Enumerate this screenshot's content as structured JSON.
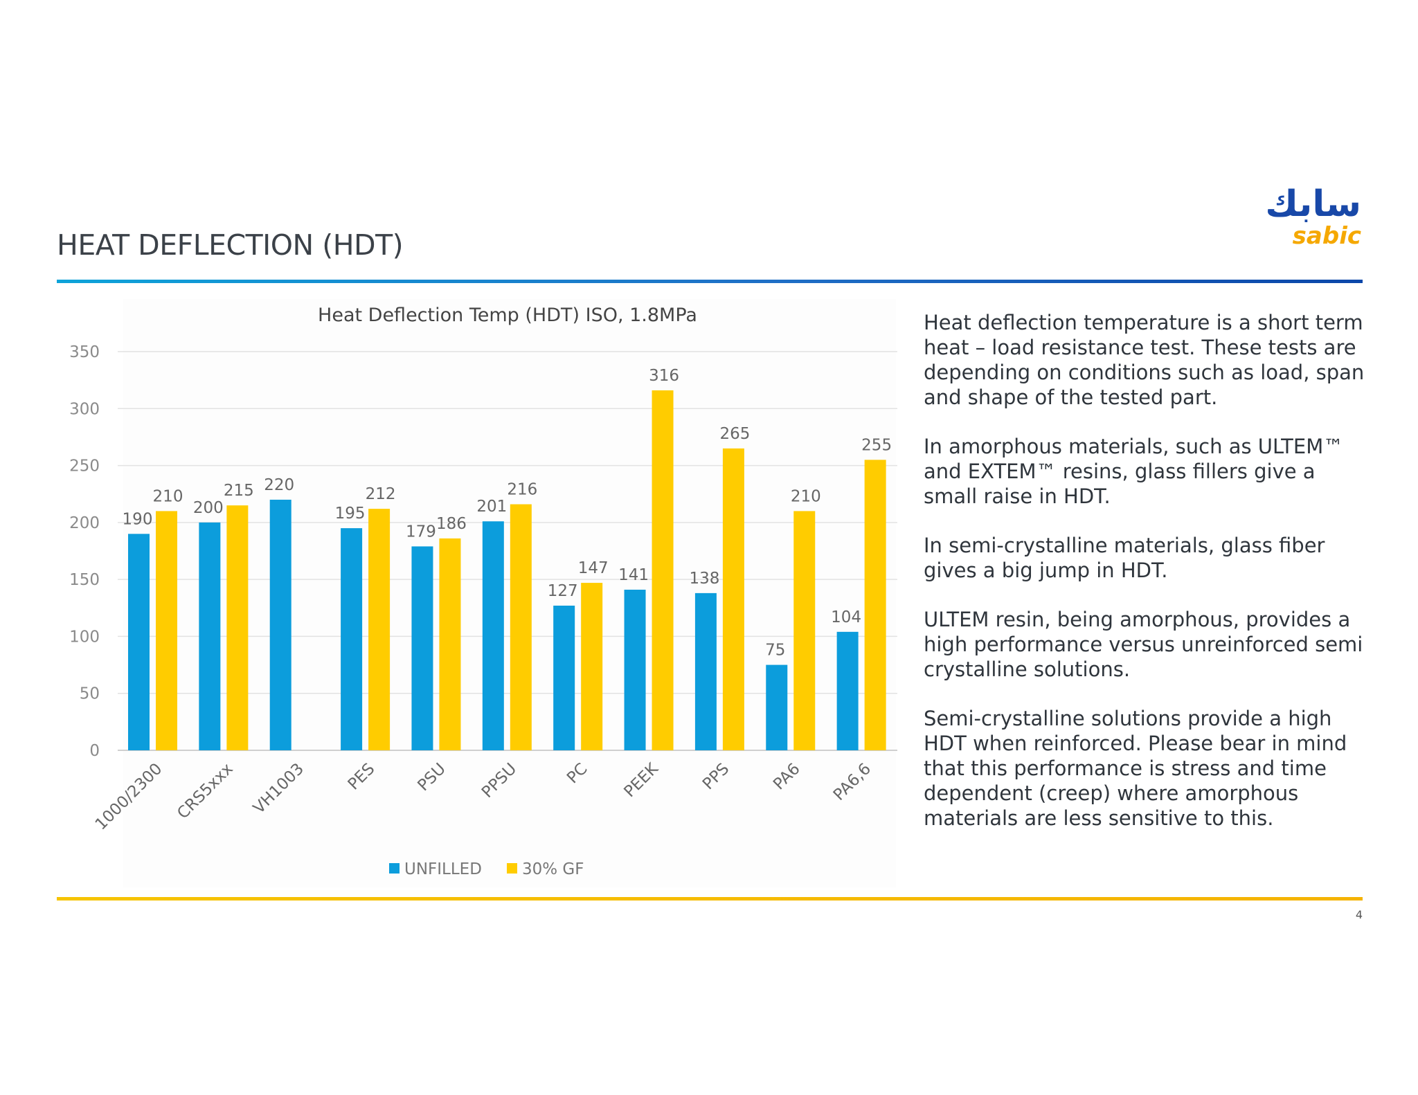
{
  "slide": {
    "title": "HEAT DEFLECTION (HDT)",
    "page_number": "4",
    "logo": {
      "arabic_text": "سابك",
      "latin_text": "sabic",
      "colors": {
        "arabic": "#1848a8",
        "latin": "#f5a800"
      }
    }
  },
  "colors": {
    "unfilled": "#0c9ddc",
    "glass_filled": "#ffcc00",
    "top_rule": "#1f6fc6",
    "bottom_rule": "#f6c400"
  },
  "chart_data": {
    "type": "bar",
    "title": "Heat Deflection Temp (HDT) ISO, 1.8MPa",
    "xlabel": "",
    "ylabel": "",
    "ylim": [
      0,
      350
    ],
    "y_ticks": [
      0,
      50,
      100,
      150,
      200,
      250,
      300,
      350
    ],
    "grid": true,
    "legend_position": "bottom-center",
    "categories": [
      "1000/2300",
      "CRS5xxx",
      "VH1003",
      "PES",
      "PSU",
      "PPSU",
      "PC",
      "PEEK",
      "PPS",
      "PA6",
      "PA6,6"
    ],
    "series": [
      {
        "name": "UNFILLED",
        "color": "#0c9ddc",
        "values": [
          190,
          200,
          220,
          195,
          179,
          201,
          127,
          141,
          138,
          75,
          104
        ]
      },
      {
        "name": "30% GF",
        "color": "#ffcc00",
        "values": [
          210,
          215,
          null,
          212,
          186,
          216,
          147,
          316,
          265,
          210,
          255
        ]
      }
    ]
  },
  "side_text": {
    "paragraphs": [
      "Heat deflection temperature is a short term heat – load resistance test. These tests are depending on conditions such as load, span and shape of the tested part.",
      "In amorphous materials, such as ULTEM™ and EXTEM™ resins, glass fillers give a small raise in HDT.",
      "In semi-crystalline materials, glass fiber gives a big jump in HDT.",
      "ULTEM resin, being amorphous, provides a high performance versus unreinforced semi crystalline solutions.",
      "Semi-crystalline solutions provide a high HDT when reinforced. Please bear in mind that this performance is stress and time dependent (creep) where amorphous materials are less sensitive to this."
    ]
  }
}
